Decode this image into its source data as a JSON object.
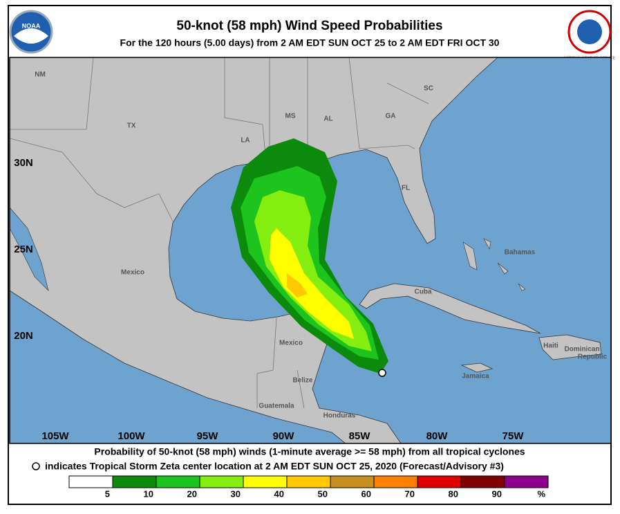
{
  "header": {
    "title": "50-knot (58 mph) Wind Speed Probabilities",
    "subtitle": "For the 120 hours (5.00 days) from 2 AM EDT SUN OCT 25 to 2 AM EDT FRI OCT 30",
    "left_logo": "NOAA",
    "right_logo": "NATIONAL WEATHER SERVICE"
  },
  "map": {
    "lon_labels": [
      "105W",
      "100W",
      "95W",
      "90W",
      "85W",
      "80W",
      "75W"
    ],
    "lat_labels": [
      "30N",
      "25N",
      "20N"
    ],
    "place_labels": [
      "NM",
      "TX",
      "LA",
      "MS",
      "AL",
      "GA",
      "SC",
      "FL",
      "Mexico",
      "Bahamas",
      "Cuba",
      "Haiti",
      "Dominican",
      "Republic",
      "Jamaica",
      "Mexico",
      "Belize",
      "Guatemala",
      "Honduras"
    ]
  },
  "footer": {
    "line1": "Probability of 50-knot (58 mph) winds (1-minute average >= 58 mph) from all tropical cyclones",
    "line2": "indicates Tropical Storm Zeta center location at 2 AM EDT SUN OCT 25, 2020 (Forecast/Advisory #3)"
  },
  "legend": {
    "labels": [
      "5",
      "10",
      "20",
      "30",
      "40",
      "50",
      "60",
      "70",
      "80",
      "90",
      "%"
    ],
    "colors": [
      "#ffffff",
      "#0c8a0c",
      "#1ec41e",
      "#84ee10",
      "#ffff00",
      "#ffc800",
      "#c89020",
      "#ff8000",
      "#e00000",
      "#800000",
      "#8c008c"
    ]
  }
}
